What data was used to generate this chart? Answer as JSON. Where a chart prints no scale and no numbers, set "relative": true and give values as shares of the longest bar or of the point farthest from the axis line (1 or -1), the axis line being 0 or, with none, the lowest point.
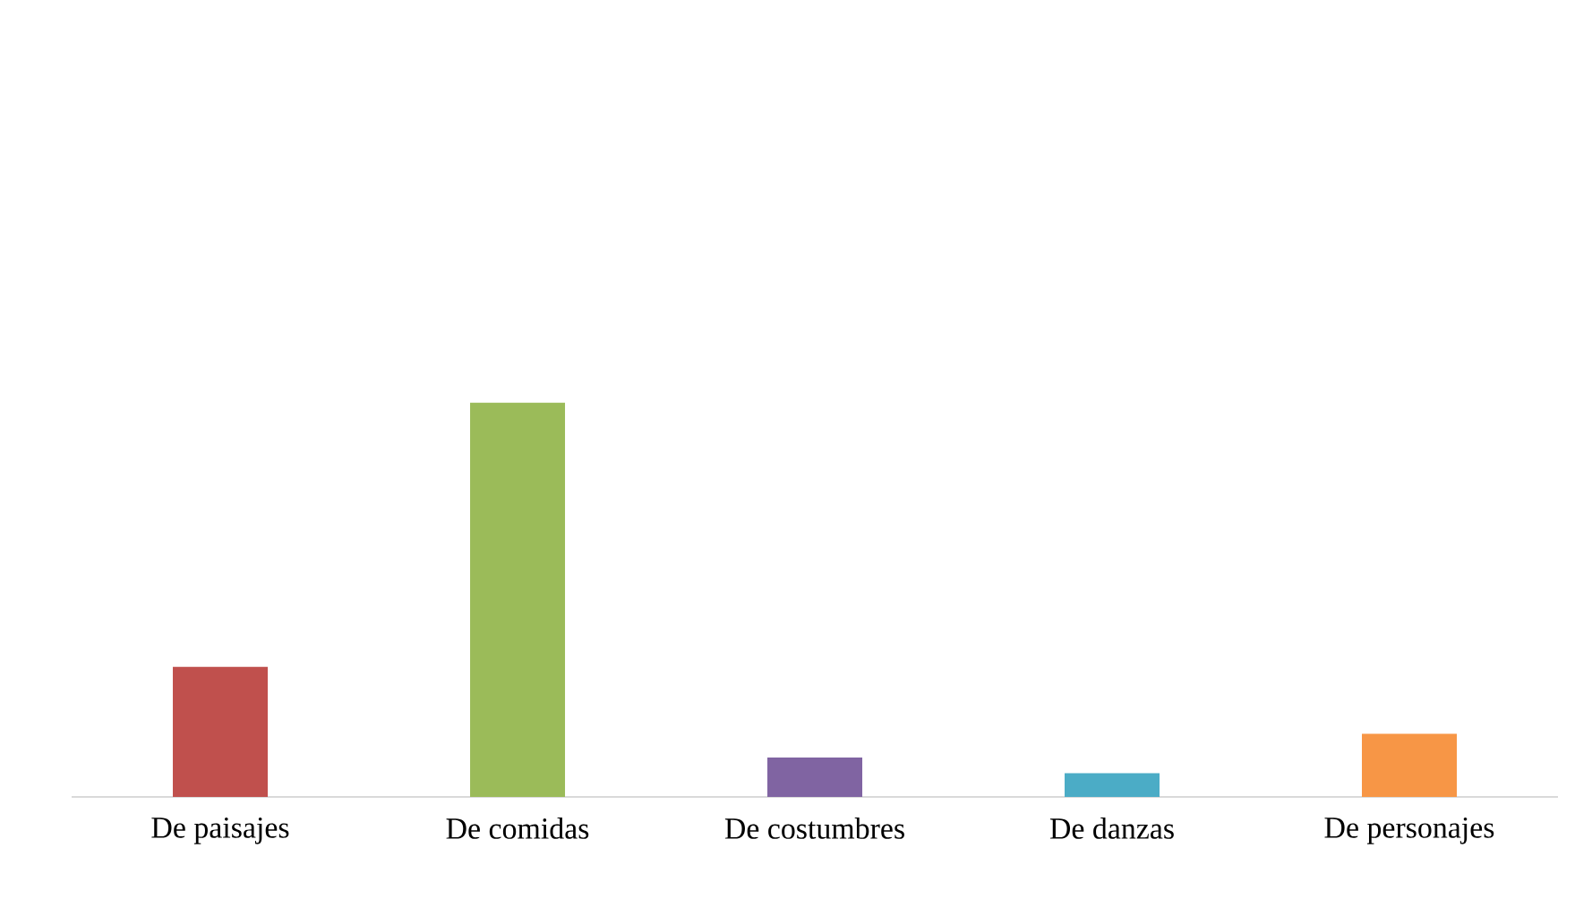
{
  "chart_data": {
    "type": "bar",
    "relative": true,
    "categories": [
      "De paisajes",
      "De comidas",
      "De costumbres",
      "De danzas",
      "De personajes"
    ],
    "values": [
      0.33,
      1,
      0.1,
      0.06,
      0.16
    ],
    "colors": [
      "#c0504d",
      "#9bbb59",
      "#8064a2",
      "#4bacc6",
      "#f79646"
    ]
  }
}
